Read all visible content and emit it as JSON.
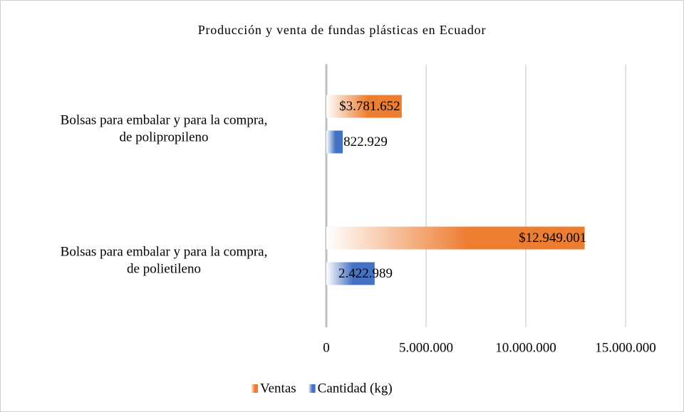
{
  "chart_data": {
    "type": "bar",
    "orientation": "horizontal",
    "title": "Producción y venta de fundas plásticas en Ecuador",
    "categories": [
      "Bolsas para embalar y para la compra, de polipropileno",
      "Bolsas para embalar y para la compra, de polietileno"
    ],
    "series": [
      {
        "name": "Ventas",
        "color": "#ed7d31",
        "values": [
          3781652,
          12949001
        ],
        "value_labels": [
          "$3.781.652",
          "$12.949.001"
        ]
      },
      {
        "name": "Cantidad (kg)",
        "color": "#4472c4",
        "values": [
          822929,
          2422989
        ],
        "value_labels": [
          "822.929",
          "2.422.989"
        ]
      }
    ],
    "xlim": [
      0,
      15000000
    ],
    "xticks": [
      0,
      {
        "value": 5000000,
        "label": "5.000.000"
      },
      {
        "value": 10000000,
        "label": "10.000.000"
      },
      {
        "value": 15000000,
        "label": "15.000.000"
      }
    ],
    "grid": true,
    "legend": "bottom"
  }
}
